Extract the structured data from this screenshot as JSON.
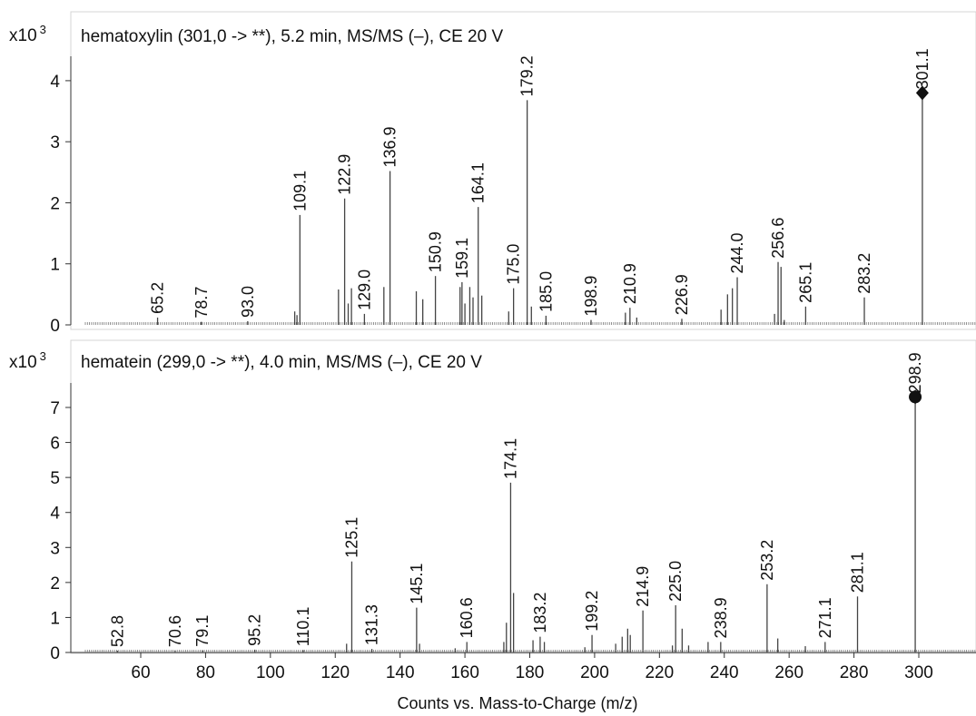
{
  "chart_data": [
    {
      "type": "bar",
      "title": "hematoxylin (301,0 -> **), 5.2 min, MS/MS (–), CE 20 V",
      "y_multiplier": "x10",
      "y_multiplier_exp": "3",
      "ylim": [
        0,
        4.4
      ],
      "yticks": [
        "0",
        "1",
        "2",
        "3",
        "4"
      ],
      "xlim": [
        40,
        317
      ],
      "grid": false,
      "precursor": {
        "mz": 301.1,
        "value": 3.8,
        "marker": "diamond"
      },
      "peaks": [
        {
          "mz": 65.2,
          "value": 0.12,
          "label": "65.2"
        },
        {
          "mz": 78.7,
          "value": 0.05,
          "label": "78.7"
        },
        {
          "mz": 93.0,
          "value": 0.06,
          "label": "93.0"
        },
        {
          "mz": 107.5,
          "value": 0.22
        },
        {
          "mz": 108.2,
          "value": 0.16
        },
        {
          "mz": 109.1,
          "value": 1.8,
          "label": "109.1"
        },
        {
          "mz": 121.0,
          "value": 0.58
        },
        {
          "mz": 122.9,
          "value": 2.07,
          "label": "122.9"
        },
        {
          "mz": 124.0,
          "value": 0.35
        },
        {
          "mz": 125.0,
          "value": 0.6
        },
        {
          "mz": 129.0,
          "value": 0.18,
          "label": "129.0"
        },
        {
          "mz": 135.0,
          "value": 0.62
        },
        {
          "mz": 136.9,
          "value": 2.52,
          "label": "136.9"
        },
        {
          "mz": 145.0,
          "value": 0.55
        },
        {
          "mz": 147.0,
          "value": 0.42
        },
        {
          "mz": 150.9,
          "value": 0.8,
          "label": "150.9"
        },
        {
          "mz": 158.5,
          "value": 0.62
        },
        {
          "mz": 159.1,
          "value": 0.7,
          "label": "159.1"
        },
        {
          "mz": 160.0,
          "value": 0.35
        },
        {
          "mz": 161.5,
          "value": 0.62
        },
        {
          "mz": 162.5,
          "value": 0.45
        },
        {
          "mz": 164.1,
          "value": 1.93,
          "label": "164.1"
        },
        {
          "mz": 165.2,
          "value": 0.48
        },
        {
          "mz": 173.5,
          "value": 0.22
        },
        {
          "mz": 175.0,
          "value": 0.6,
          "label": "175.0"
        },
        {
          "mz": 179.2,
          "value": 3.68,
          "label": "179.2"
        },
        {
          "mz": 180.5,
          "value": 0.3
        },
        {
          "mz": 185.0,
          "value": 0.15,
          "label": "185.0"
        },
        {
          "mz": 198.9,
          "value": 0.08,
          "label": "198.9"
        },
        {
          "mz": 209.5,
          "value": 0.2
        },
        {
          "mz": 210.9,
          "value": 0.28,
          "label": "210.9"
        },
        {
          "mz": 213.0,
          "value": 0.12
        },
        {
          "mz": 226.9,
          "value": 0.1,
          "label": "226.9"
        },
        {
          "mz": 239.0,
          "value": 0.25
        },
        {
          "mz": 241.0,
          "value": 0.5
        },
        {
          "mz": 242.5,
          "value": 0.6
        },
        {
          "mz": 244.0,
          "value": 0.78,
          "label": "244.0"
        },
        {
          "mz": 255.5,
          "value": 0.18
        },
        {
          "mz": 256.6,
          "value": 1.03,
          "label": "256.6"
        },
        {
          "mz": 257.5,
          "value": 0.95
        },
        {
          "mz": 258.5,
          "value": 0.08
        },
        {
          "mz": 265.1,
          "value": 0.3,
          "label": "265.1"
        },
        {
          "mz": 283.2,
          "value": 0.45,
          "label": "283.2"
        },
        {
          "mz": 301.1,
          "value": 3.8,
          "label": "301.1"
        }
      ]
    },
    {
      "type": "bar",
      "title": "hematein (299,0 -> **), 4.0 min, MS/MS (–), CE 20 V",
      "y_multiplier": "x10",
      "y_multiplier_exp": "3",
      "ylim": [
        0,
        7.7
      ],
      "yticks": [
        "0",
        "1",
        "2",
        "3",
        "4",
        "5",
        "6",
        "7"
      ],
      "xlim": [
        40,
        317
      ],
      "xticks": [
        "60",
        "80",
        "100",
        "120",
        "140",
        "160",
        "180",
        "200",
        "220",
        "240",
        "260",
        "280",
        "300"
      ],
      "xlabel": "Counts vs. Mass-to-Charge (m/z)",
      "grid": false,
      "precursor": {
        "mz": 298.9,
        "value": 7.3,
        "marker": "circle+diamond"
      },
      "peaks": [
        {
          "mz": 52.8,
          "value": 0.05,
          "label": "52.8"
        },
        {
          "mz": 70.6,
          "value": 0.05,
          "label": "70.6"
        },
        {
          "mz": 79.1,
          "value": 0.06,
          "label": "79.1"
        },
        {
          "mz": 95.2,
          "value": 0.08,
          "label": "95.2"
        },
        {
          "mz": 110.1,
          "value": 0.07,
          "label": "110.1"
        },
        {
          "mz": 123.5,
          "value": 0.25
        },
        {
          "mz": 125.1,
          "value": 2.6,
          "label": "125.1"
        },
        {
          "mz": 131.3,
          "value": 0.1,
          "label": "131.3"
        },
        {
          "mz": 145.1,
          "value": 1.28,
          "label": "145.1"
        },
        {
          "mz": 146.0,
          "value": 0.25
        },
        {
          "mz": 157.0,
          "value": 0.12
        },
        {
          "mz": 160.6,
          "value": 0.3,
          "label": "160.6"
        },
        {
          "mz": 172.0,
          "value": 0.3
        },
        {
          "mz": 172.8,
          "value": 0.85
        },
        {
          "mz": 174.1,
          "value": 4.85,
          "label": "174.1"
        },
        {
          "mz": 175.0,
          "value": 1.7
        },
        {
          "mz": 181.0,
          "value": 0.35
        },
        {
          "mz": 183.2,
          "value": 0.45,
          "label": "183.2"
        },
        {
          "mz": 184.5,
          "value": 0.3
        },
        {
          "mz": 197.0,
          "value": 0.15
        },
        {
          "mz": 199.2,
          "value": 0.5,
          "label": "199.2"
        },
        {
          "mz": 206.5,
          "value": 0.25
        },
        {
          "mz": 208.5,
          "value": 0.45
        },
        {
          "mz": 210.2,
          "value": 0.68
        },
        {
          "mz": 211.0,
          "value": 0.5
        },
        {
          "mz": 214.9,
          "value": 1.2,
          "label": "214.9"
        },
        {
          "mz": 224.0,
          "value": 0.2
        },
        {
          "mz": 225.0,
          "value": 1.35,
          "label": "225.0"
        },
        {
          "mz": 227.0,
          "value": 0.68
        },
        {
          "mz": 229.0,
          "value": 0.2
        },
        {
          "mz": 235.0,
          "value": 0.3
        },
        {
          "mz": 238.9,
          "value": 0.3,
          "label": "238.9"
        },
        {
          "mz": 253.2,
          "value": 1.95,
          "label": "253.2"
        },
        {
          "mz": 256.5,
          "value": 0.4
        },
        {
          "mz": 265.0,
          "value": 0.18
        },
        {
          "mz": 271.1,
          "value": 0.3,
          "label": "271.1"
        },
        {
          "mz": 281.1,
          "value": 1.6,
          "label": "281.1"
        },
        {
          "mz": 298.9,
          "value": 7.3,
          "label": "298.9"
        }
      ]
    }
  ]
}
